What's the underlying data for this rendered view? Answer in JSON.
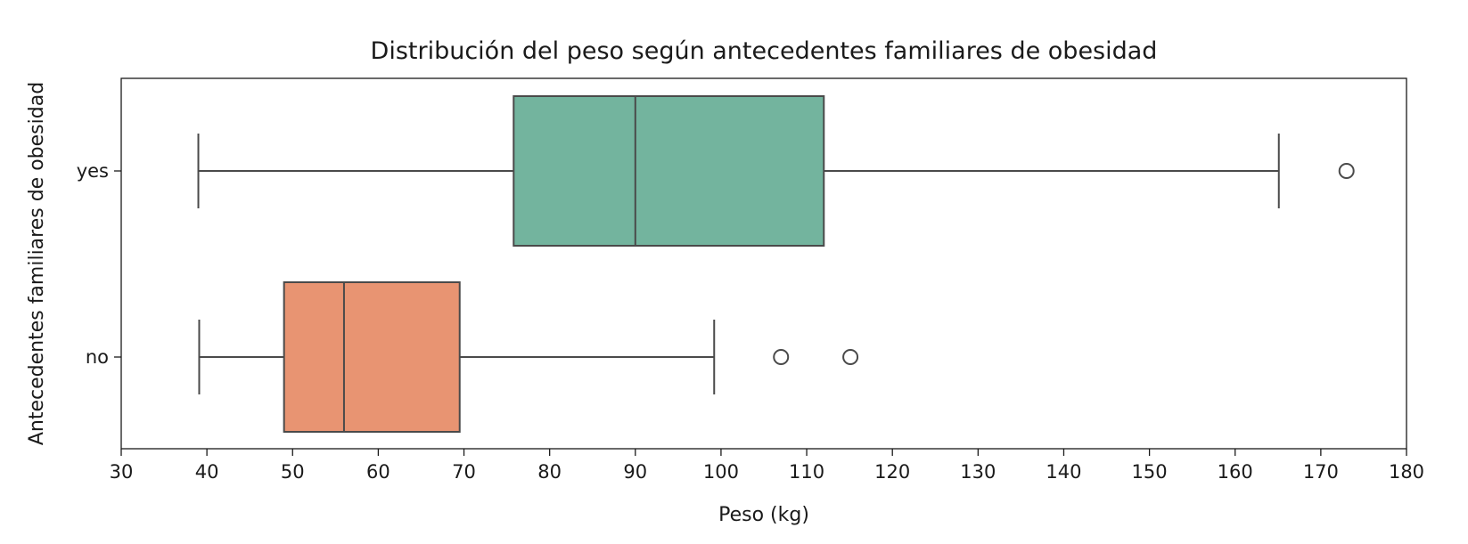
{
  "chart_data": {
    "type": "boxplot",
    "orientation": "horizontal",
    "title": "Distribución del peso según antecedentes familiares de obesidad",
    "xlabel": "Peso (kg)",
    "ylabel": "Antecedentes familiares de obesidad",
    "xlim": [
      30,
      180
    ],
    "xticks": [
      30,
      40,
      50,
      60,
      70,
      80,
      90,
      100,
      110,
      120,
      130,
      140,
      150,
      160,
      170,
      180
    ],
    "grid": false,
    "categories": [
      "yes",
      "no"
    ],
    "series": [
      {
        "category": "yes",
        "whisker_low": 39,
        "q1": 75.8,
        "median": 90,
        "q3": 112,
        "whisker_high": 165.1,
        "outliers": [
          173
        ],
        "color": "#73b49e"
      },
      {
        "category": "no",
        "whisker_low": 39.1,
        "q1": 49,
        "median": 56,
        "q3": 69.5,
        "whisker_high": 99.2,
        "outliers": [
          107,
          115.1
        ],
        "color": "#e89472"
      }
    ],
    "line_color": "#4a4a4a",
    "outlier_edge_color": "#4a4a4a"
  }
}
